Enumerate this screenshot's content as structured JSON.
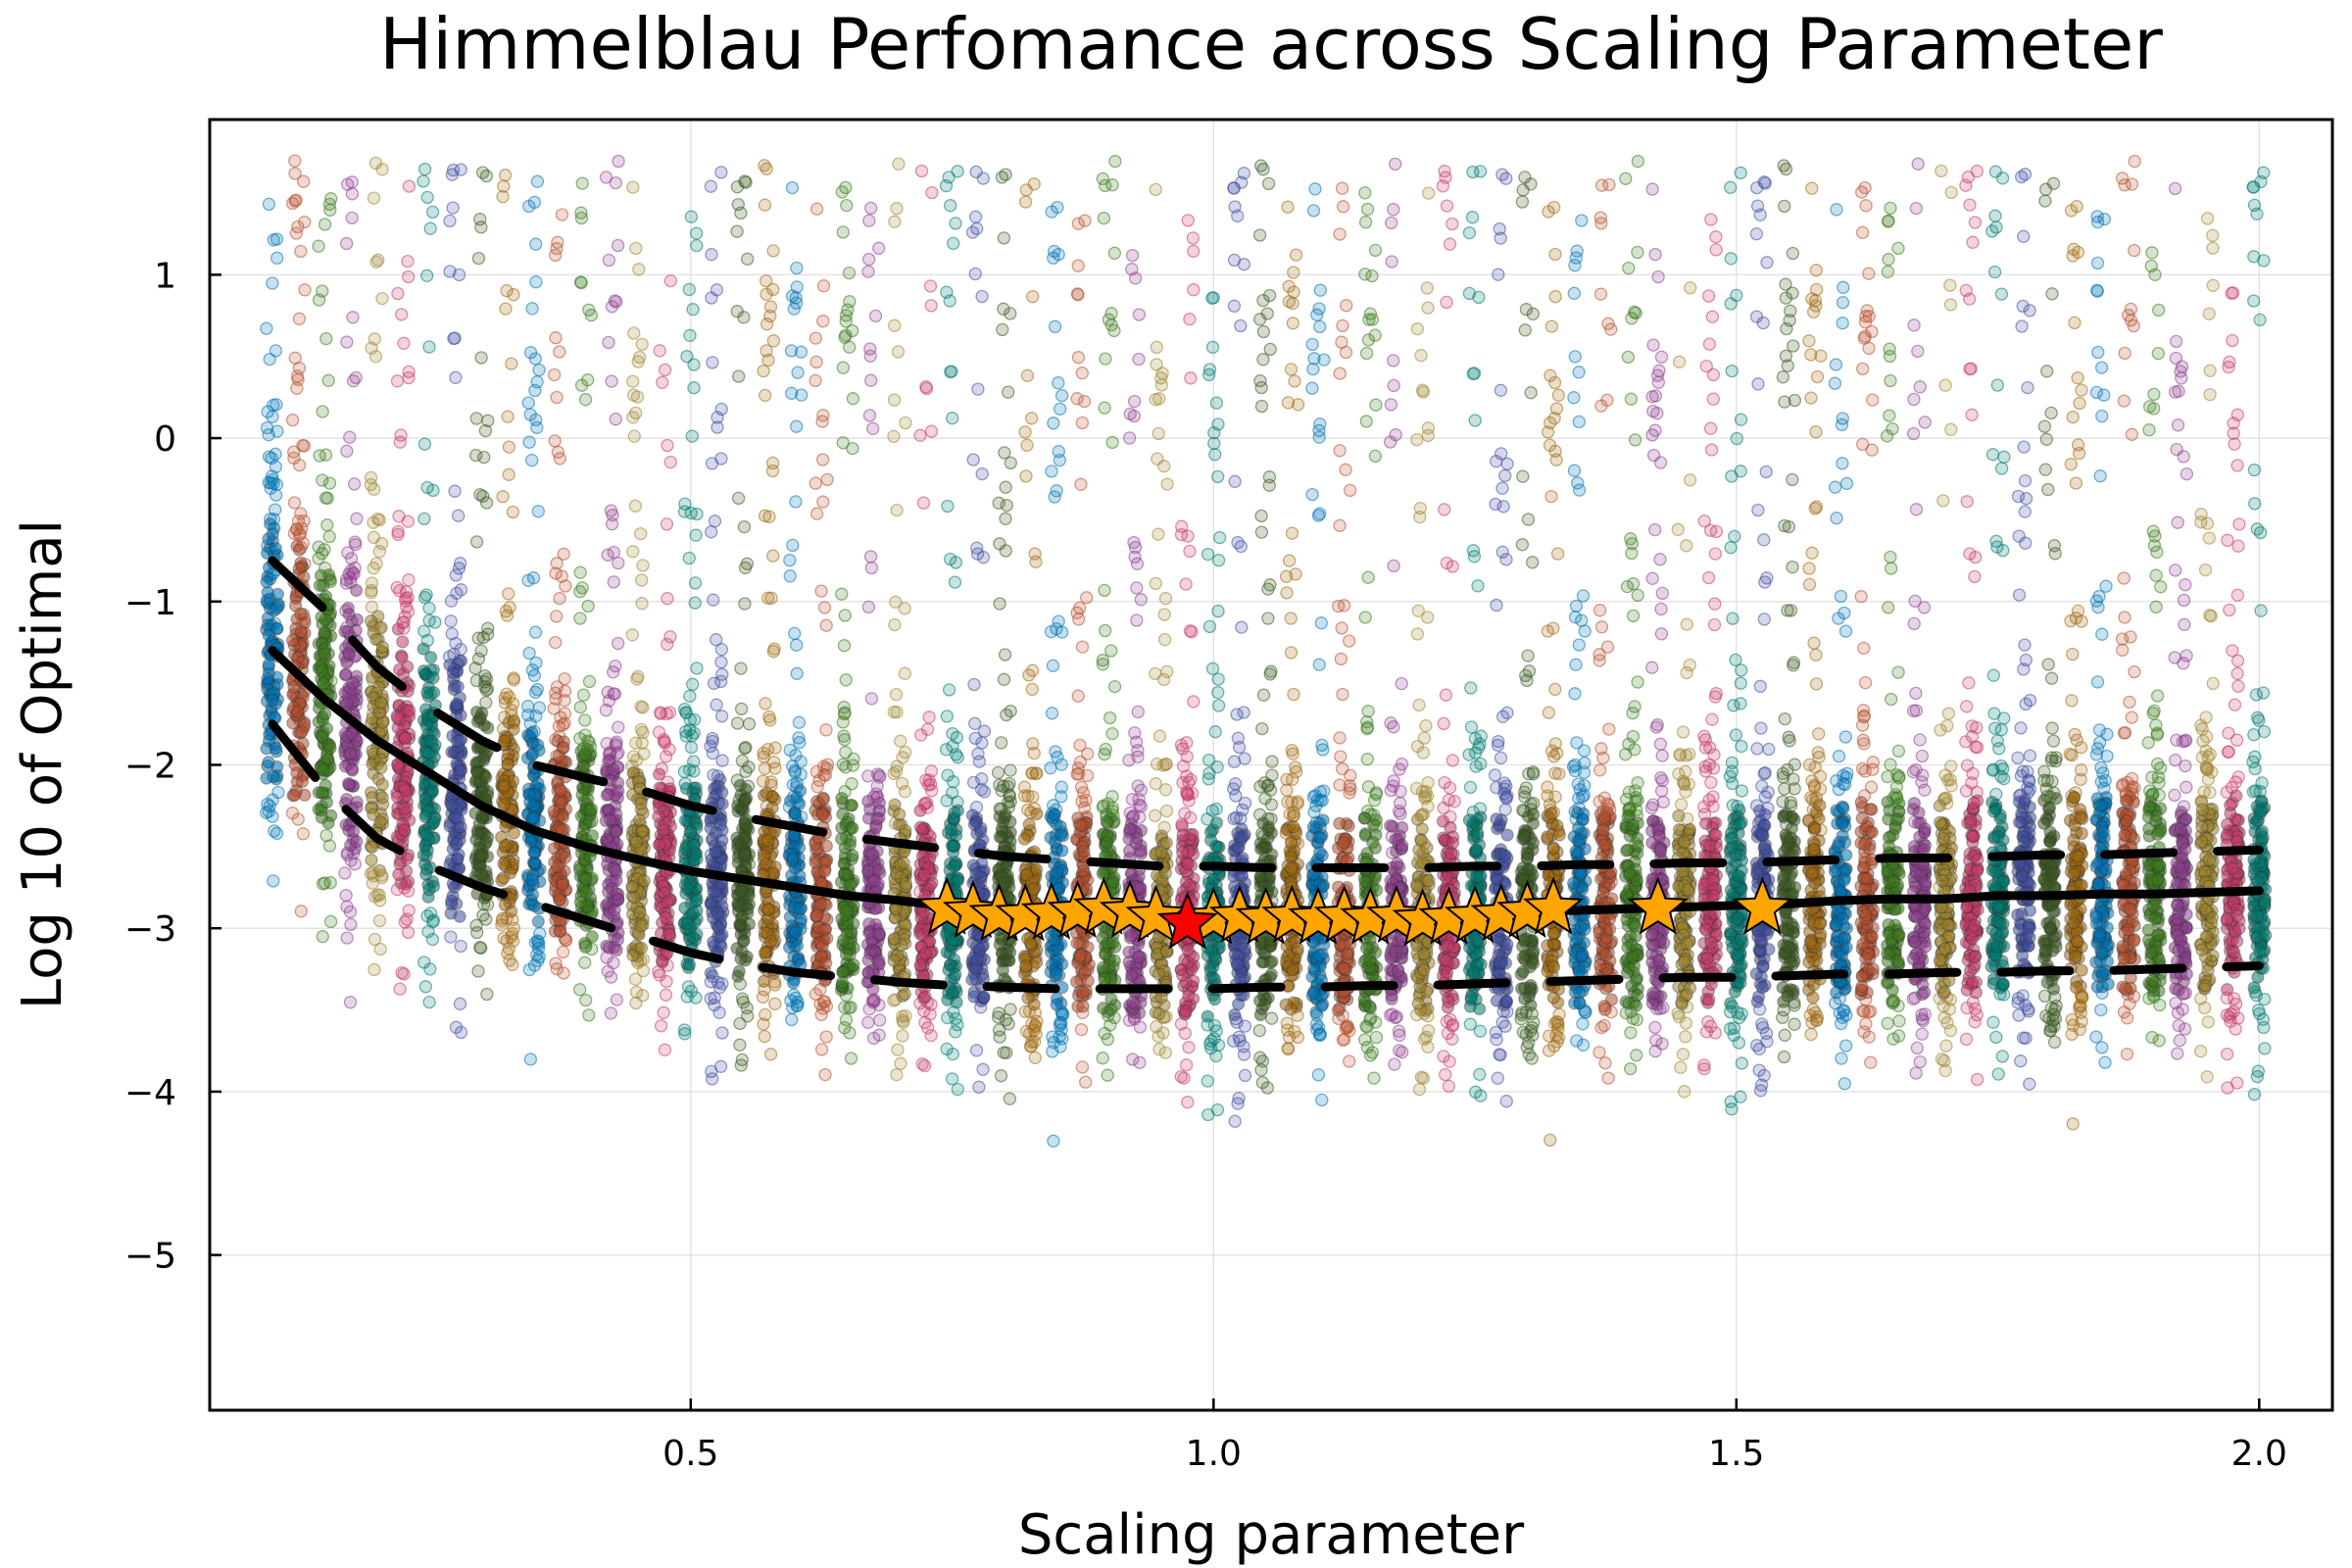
{
  "chart_data": {
    "type": "scatter",
    "title": "Himmelblau Perfomance across Scaling Parameter",
    "xlabel": "Scaling parameter",
    "ylabel": "Log 10 of Optimal",
    "xlim": [
      0.04,
      2.07
    ],
    "ylim": [
      -5.95,
      1.95
    ],
    "x_ticks": [
      0.5,
      1.0,
      1.5,
      2.0
    ],
    "x_tick_labels": [
      "0.5",
      "1.0",
      "1.5",
      "2.0"
    ],
    "y_ticks": [
      1,
      0,
      -1,
      -2,
      -3,
      -4,
      -5
    ],
    "y_tick_labels": [
      "1",
      "0",
      "−1",
      "−2",
      "−3",
      "−4",
      "−5"
    ],
    "grid": true,
    "legend": "none",
    "scatter_colors": [
      "#0072B2",
      "#B5502F",
      "#3D7A1E",
      "#8E3F8E",
      "#9E8530",
      "#C43C6A",
      "#007A70",
      "#3F4FA0",
      "#3A5A20",
      "#A06A10"
    ],
    "scaling_values": [
      0.1,
      0.125,
      0.15,
      0.175,
      0.2,
      0.225,
      0.25,
      0.275,
      0.3,
      0.325,
      0.35,
      0.375,
      0.4,
      0.425,
      0.45,
      0.475,
      0.5,
      0.525,
      0.55,
      0.575,
      0.6,
      0.625,
      0.65,
      0.675,
      0.7,
      0.725,
      0.75,
      0.775,
      0.8,
      0.825,
      0.85,
      0.875,
      0.9,
      0.925,
      0.95,
      0.975,
      1.0,
      1.025,
      1.05,
      1.075,
      1.1,
      1.125,
      1.15,
      1.175,
      1.2,
      1.225,
      1.25,
      1.275,
      1.3,
      1.325,
      1.35,
      1.375,
      1.4,
      1.425,
      1.45,
      1.475,
      1.5,
      1.525,
      1.55,
      1.575,
      1.6,
      1.625,
      1.65,
      1.675,
      1.7,
      1.725,
      1.75,
      1.775,
      1.8,
      1.825,
      1.85,
      1.875,
      1.9,
      1.925,
      1.95,
      1.975,
      2.0
    ],
    "median_line": {
      "x": [
        0.1,
        0.15,
        0.2,
        0.25,
        0.3,
        0.35,
        0.4,
        0.45,
        0.5,
        0.55,
        0.6,
        0.65,
        0.7,
        0.75,
        0.8,
        0.85,
        0.9,
        0.95,
        1.0,
        1.05,
        1.1,
        1.15,
        1.2,
        1.25,
        1.3,
        1.35,
        1.4,
        1.45,
        1.5,
        1.55,
        1.6,
        1.65,
        1.7,
        1.75,
        1.8,
        1.85,
        1.9,
        1.95,
        2.0
      ],
      "y": [
        -1.3,
        -1.6,
        -1.85,
        -2.05,
        -2.25,
        -2.4,
        -2.5,
        -2.58,
        -2.65,
        -2.7,
        -2.75,
        -2.8,
        -2.83,
        -2.87,
        -2.89,
        -2.9,
        -2.92,
        -2.93,
        -2.94,
        -2.93,
        -2.93,
        -2.92,
        -2.92,
        -2.91,
        -2.9,
        -2.89,
        -2.88,
        -2.87,
        -2.86,
        -2.85,
        -2.83,
        -2.82,
        -2.82,
        -2.8,
        -2.8,
        -2.79,
        -2.79,
        -2.78,
        -2.77
      ]
    },
    "upper_quartile_line": {
      "x": [
        0.1,
        0.15,
        0.2,
        0.25,
        0.3,
        0.35,
        0.4,
        0.45,
        0.5,
        0.55,
        0.6,
        0.65,
        0.7,
        0.75,
        0.8,
        0.85,
        0.9,
        0.95,
        1.0,
        1.05,
        1.1,
        1.15,
        1.2,
        1.25,
        1.3,
        1.35,
        1.4,
        1.45,
        1.5,
        1.55,
        1.6,
        1.65,
        1.7,
        1.75,
        1.8,
        1.85,
        1.9,
        1.95,
        2.0
      ],
      "y": [
        -0.75,
        -1.05,
        -1.4,
        -1.65,
        -1.85,
        -2.0,
        -2.08,
        -2.15,
        -2.25,
        -2.32,
        -2.38,
        -2.44,
        -2.48,
        -2.52,
        -2.56,
        -2.58,
        -2.6,
        -2.62,
        -2.62,
        -2.63,
        -2.63,
        -2.63,
        -2.63,
        -2.62,
        -2.62,
        -2.61,
        -2.61,
        -2.6,
        -2.6,
        -2.59,
        -2.58,
        -2.57,
        -2.57,
        -2.56,
        -2.55,
        -2.55,
        -2.54,
        -2.53,
        -2.52
      ]
    },
    "lower_quartile_line": {
      "x": [
        0.1,
        0.15,
        0.2,
        0.25,
        0.3,
        0.35,
        0.4,
        0.45,
        0.5,
        0.55,
        0.6,
        0.65,
        0.7,
        0.75,
        0.8,
        0.85,
        0.9,
        0.95,
        1.0,
        1.05,
        1.1,
        1.15,
        1.2,
        1.25,
        1.3,
        1.35,
        1.4,
        1.45,
        1.5,
        1.55,
        1.6,
        1.65,
        1.7,
        1.75,
        1.8,
        1.85,
        1.9,
        1.95,
        2.0
      ],
      "y": [
        -1.75,
        -2.15,
        -2.45,
        -2.62,
        -2.75,
        -2.85,
        -2.95,
        -3.05,
        -3.15,
        -3.22,
        -3.27,
        -3.3,
        -3.33,
        -3.35,
        -3.36,
        -3.37,
        -3.37,
        -3.37,
        -3.37,
        -3.36,
        -3.36,
        -3.35,
        -3.35,
        -3.34,
        -3.33,
        -3.32,
        -3.31,
        -3.3,
        -3.3,
        -3.29,
        -3.28,
        -3.28,
        -3.27,
        -3.27,
        -3.26,
        -3.26,
        -3.25,
        -3.24,
        -3.23
      ]
    },
    "orange_stars": {
      "x": [
        0.745,
        0.77,
        0.795,
        0.82,
        0.845,
        0.87,
        0.895,
        0.92,
        0.945,
        1.0,
        1.025,
        1.05,
        1.075,
        1.1,
        1.125,
        1.15,
        1.175,
        1.2,
        1.225,
        1.25,
        1.275,
        1.3,
        1.325,
        1.425,
        1.525
      ],
      "y": [
        -2.88,
        -2.9,
        -2.92,
        -2.92,
        -2.91,
        -2.9,
        -2.88,
        -2.9,
        -2.93,
        -2.94,
        -2.93,
        -2.94,
        -2.93,
        -2.94,
        -2.93,
        -2.94,
        -2.93,
        -2.95,
        -2.94,
        -2.93,
        -2.92,
        -2.9,
        -2.88,
        -2.88,
        -2.88
      ],
      "color": "#FFA500"
    },
    "best_star": {
      "x": 0.975,
      "y": -2.97,
      "color": "#FF0000"
    }
  }
}
